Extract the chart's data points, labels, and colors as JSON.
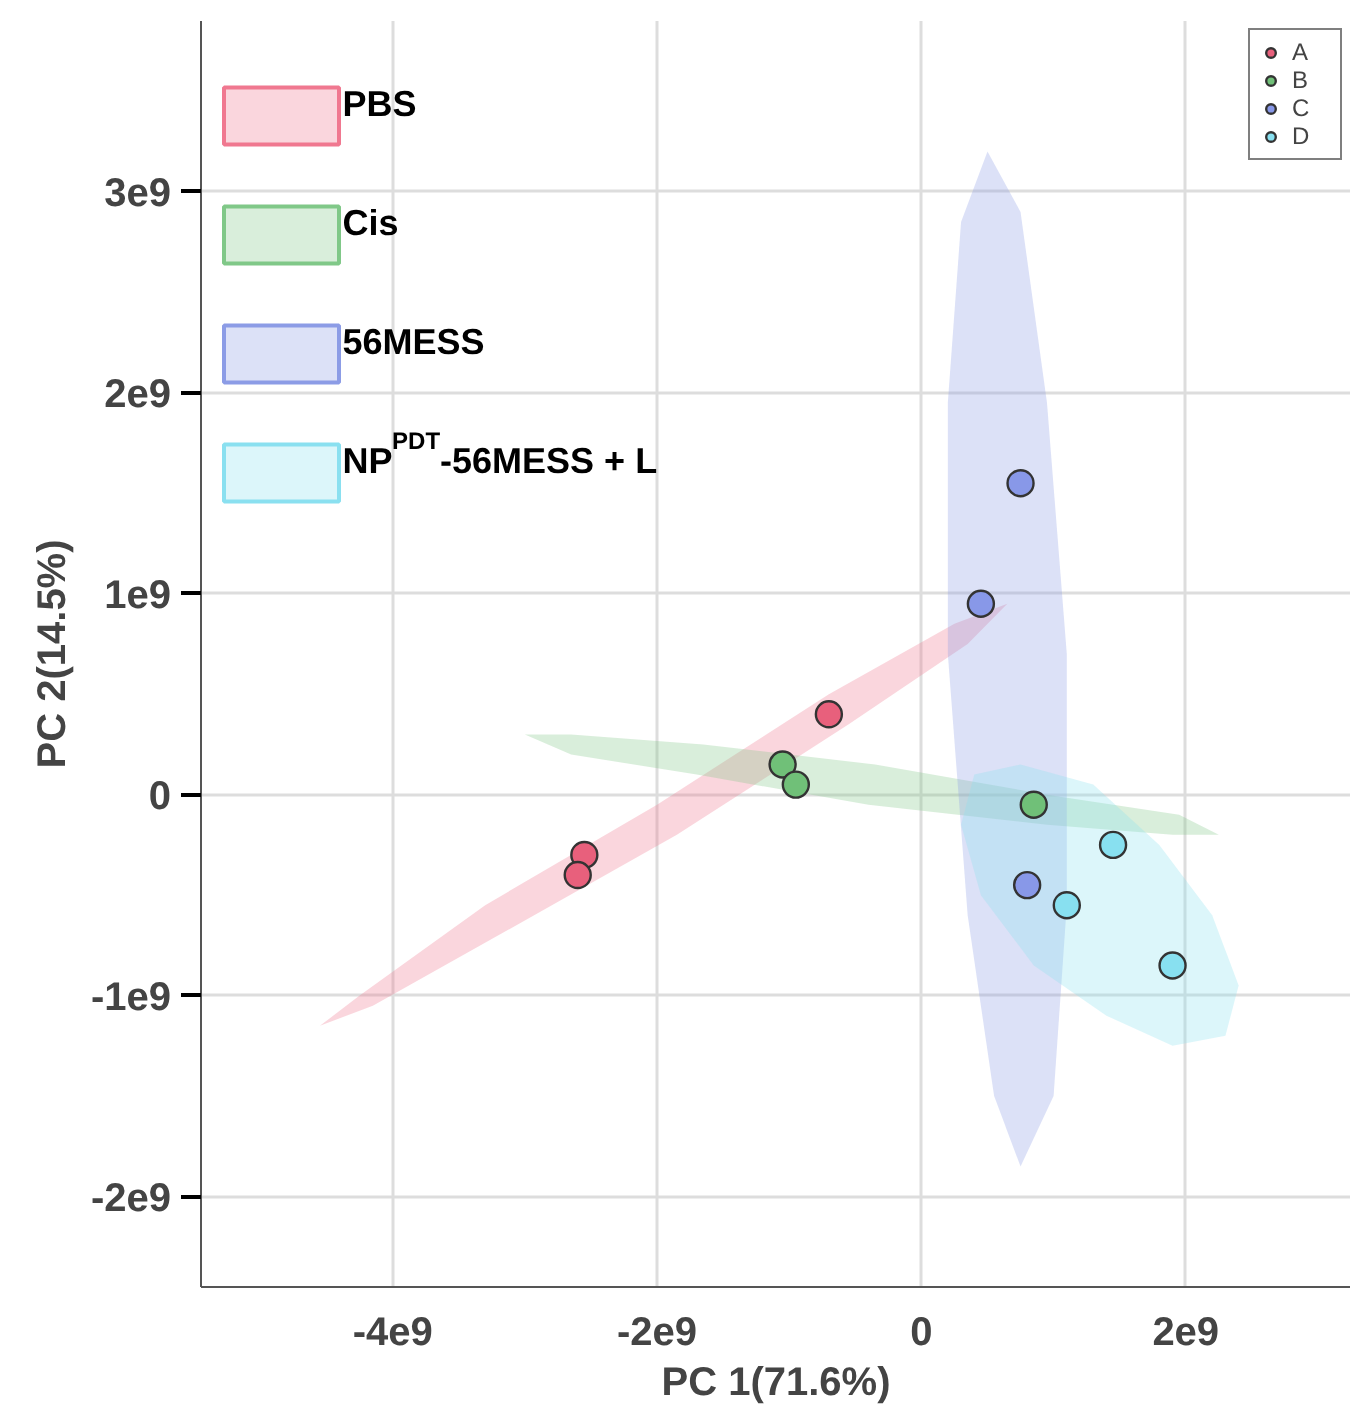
{
  "chart_data": {
    "type": "scatter",
    "xlabel": "PC 1(71.6%)",
    "ylabel": "PC 2(14.5%)",
    "xlim": [
      -5450000000.0,
      3250000000.0
    ],
    "ylim": [
      -2450000000.0,
      3850000000.0
    ],
    "xticks": [
      {
        "value": -4000000000.0,
        "label": "-4e9"
      },
      {
        "value": -2000000000.0,
        "label": "-2e9"
      },
      0,
      {
        "value": 2000000000.0,
        "label": "2e9"
      }
    ],
    "yticks": [
      {
        "value": -2000000000.0,
        "label": "-2e9"
      },
      {
        "value": -1000000000.0,
        "label": "-1e9"
      },
      0,
      {
        "value": 1000000000.0,
        "label": "1e9"
      },
      {
        "value": 2000000000.0,
        "label": "2e9"
      },
      {
        "value": 3000000000.0,
        "label": "3e9"
      }
    ],
    "grid": true,
    "legend": "top left",
    "marker": "circle",
    "series": [
      {
        "type": "area",
        "marker": "none",
        "name": "PBS",
        "color": "#f07890",
        "x": [
          650000000.0,
          350000000.0,
          -550000000.0,
          -1850000000.0,
          -3200000000.0,
          -4150000000.0,
          -4550000000.0,
          -4250000000.0,
          -3300000000.0,
          -2000000000.0,
          -700000000.0,
          250000000.0
        ],
        "values": [
          950000000.0,
          750000000.0,
          350000000.0,
          -200000000.0,
          -700000000.0,
          -1050000000.0,
          -1150000000.0,
          -1000000000.0,
          -550000000.0,
          -50000000.0,
          500000000.0,
          850000000.0
        ]
      },
      {
        "type": "area",
        "marker": "none",
        "name": "Cis",
        "color": "#80c888",
        "x": [
          2250000000.0,
          1900000000.0,
          950000000.0,
          -400000000.0,
          -1700000000.0,
          -2650000000.0,
          -3000000000.0,
          -2650000000.0,
          -1650000000.0,
          -350000000.0,
          950000000.0,
          1950000000.0
        ],
        "values": [
          -200000000.0,
          -200000000.0,
          -150000000.0,
          -50000000.0,
          100000000.0,
          200000000.0,
          300000000.0,
          300000000.0,
          250000000.0,
          150000000.0,
          0,
          -100000000.0
        ]
      },
      {
        "type": "area",
        "marker": "none",
        "name": "56MESS",
        "color": "#8c9ce6",
        "x": [
          500000000.0,
          750000000.0,
          950000000.0,
          1100000000.0,
          1100000000.0,
          1000000000.0,
          750000000.0,
          550000000.0,
          350000000.0,
          200000000.0,
          200000000.0,
          300000000.0
        ],
        "values": [
          3200000000.0,
          2900000000.0,
          1950000000.0,
          700000000.0,
          -550000000.0,
          -1500000000.0,
          -1850000000.0,
          -1500000000.0,
          -600000000.0,
          700000000.0,
          1950000000.0,
          2850000000.0
        ]
      },
      {
        "type": "area",
        "marker": "none",
        "name": "NP$^{PDT}$-56MESS  + L",
        "color": "#8ae0f0",
        "x": [
          2300000000.0,
          1900000000.0,
          1400000000.0,
          850000000.0,
          450000000.0,
          300000000.0,
          400000000.0,
          750000000.0,
          1300000000.0,
          1800000000.0,
          2200000000.0,
          2400000000.0
        ],
        "values": [
          -1200000000.0,
          -1250000000.0,
          -1100000000.0,
          -850000000.0,
          -500000000.0,
          -150000000.0,
          100000000.0,
          150000000.0,
          50000000.0,
          -250000000.0,
          -600000000.0,
          -950000000.0
        ]
      },
      {
        "name": "A",
        "color": "#e8607c",
        "x": [
          -700000000.0,
          -2550000000.0,
          -2600000000.0
        ],
        "values": [
          400000000.0,
          -300000000.0,
          -400000000.0
        ]
      },
      {
        "name": "B",
        "color": "#70c078",
        "x": [
          -1050000000.0,
          -950000000.0,
          850000000.0
        ],
        "values": [
          150000000.0,
          50000000.0,
          -50000000.0
        ]
      },
      {
        "name": "C",
        "color": "#8898e8",
        "x": [
          750000000.0,
          450000000.0,
          800000000.0
        ],
        "values": [
          1550000000.0,
          950000000.0,
          -450000000.0
        ]
      },
      {
        "name": "D",
        "color": "#88e0f0",
        "x": [
          1450000000.0,
          1100000000.0,
          1900000000.0
        ],
        "values": [
          -250000000.0,
          -550000000.0,
          -850000000.0
        ]
      }
    ]
  }
}
